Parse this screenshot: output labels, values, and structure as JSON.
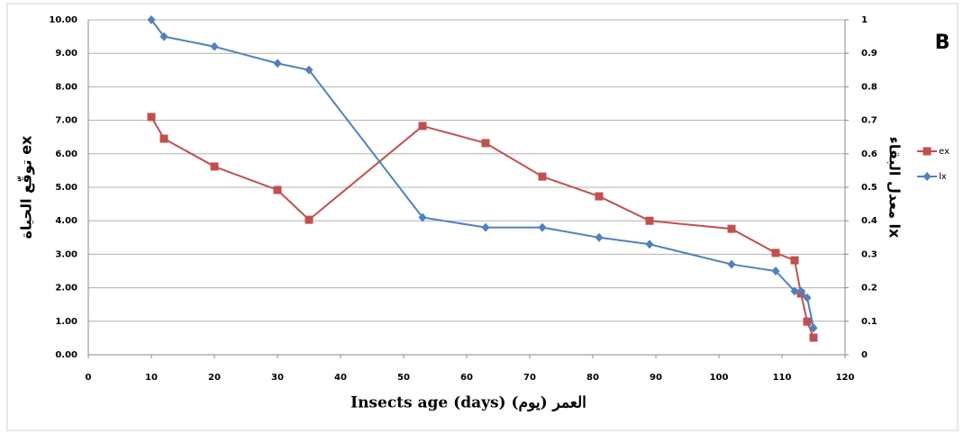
{
  "chart_data": {
    "type": "line",
    "panel_label": "B",
    "xlabel": "Insects age (days)  العمر (يوم)",
    "ylabel": "توقّع الحياة ex",
    "y2label": "معدل البقاء lx",
    "xlim": [
      0,
      120
    ],
    "xticks": [
      0,
      10,
      20,
      30,
      40,
      50,
      60,
      70,
      80,
      90,
      100,
      110,
      120
    ],
    "ylim": [
      0,
      10
    ],
    "yticks": [
      {
        "value": 0,
        "label": "0.00"
      },
      {
        "value": 1,
        "label": "1.00"
      },
      {
        "value": 2,
        "label": "2.00"
      },
      {
        "value": 3,
        "label": "3.00"
      },
      {
        "value": 4,
        "label": "4.00"
      },
      {
        "value": 5,
        "label": "5.00"
      },
      {
        "value": 6,
        "label": "6.00"
      },
      {
        "value": 7,
        "label": "7.00"
      },
      {
        "value": 8,
        "label": "8.00"
      },
      {
        "value": 9,
        "label": "9.00"
      },
      {
        "value": 10,
        "label": "10.00"
      }
    ],
    "y2lim": [
      0,
      1
    ],
    "y2ticks": [
      0,
      0.1,
      0.2,
      0.3,
      0.4,
      0.5,
      0.6,
      0.7,
      0.8,
      0.9,
      1
    ],
    "grid": true,
    "series": [
      {
        "name": "ex",
        "color": "#c0504d",
        "marker": "square",
        "x": [
          10,
          12,
          20,
          30,
          35,
          53,
          63,
          72,
          81,
          89,
          102,
          109,
          112,
          113,
          114,
          115
        ],
        "values": [
          7.1,
          6.45,
          5.62,
          4.92,
          4.03,
          6.83,
          6.32,
          5.32,
          4.73,
          4.0,
          3.76,
          3.04,
          2.82,
          1.83,
          0.99,
          0.51
        ]
      },
      {
        "name": "lx",
        "color": "#4f81bd",
        "marker": "diamond",
        "axis": "y2",
        "x": [
          10,
          12,
          20,
          30,
          35,
          53,
          63,
          72,
          81,
          89,
          102,
          109,
          112,
          113,
          114,
          115
        ],
        "values": [
          1.0,
          0.95,
          0.92,
          0.87,
          0.85,
          0.41,
          0.38,
          0.38,
          0.35,
          0.33,
          0.27,
          0.25,
          0.19,
          0.19,
          0.17,
          0.08
        ]
      }
    ]
  }
}
